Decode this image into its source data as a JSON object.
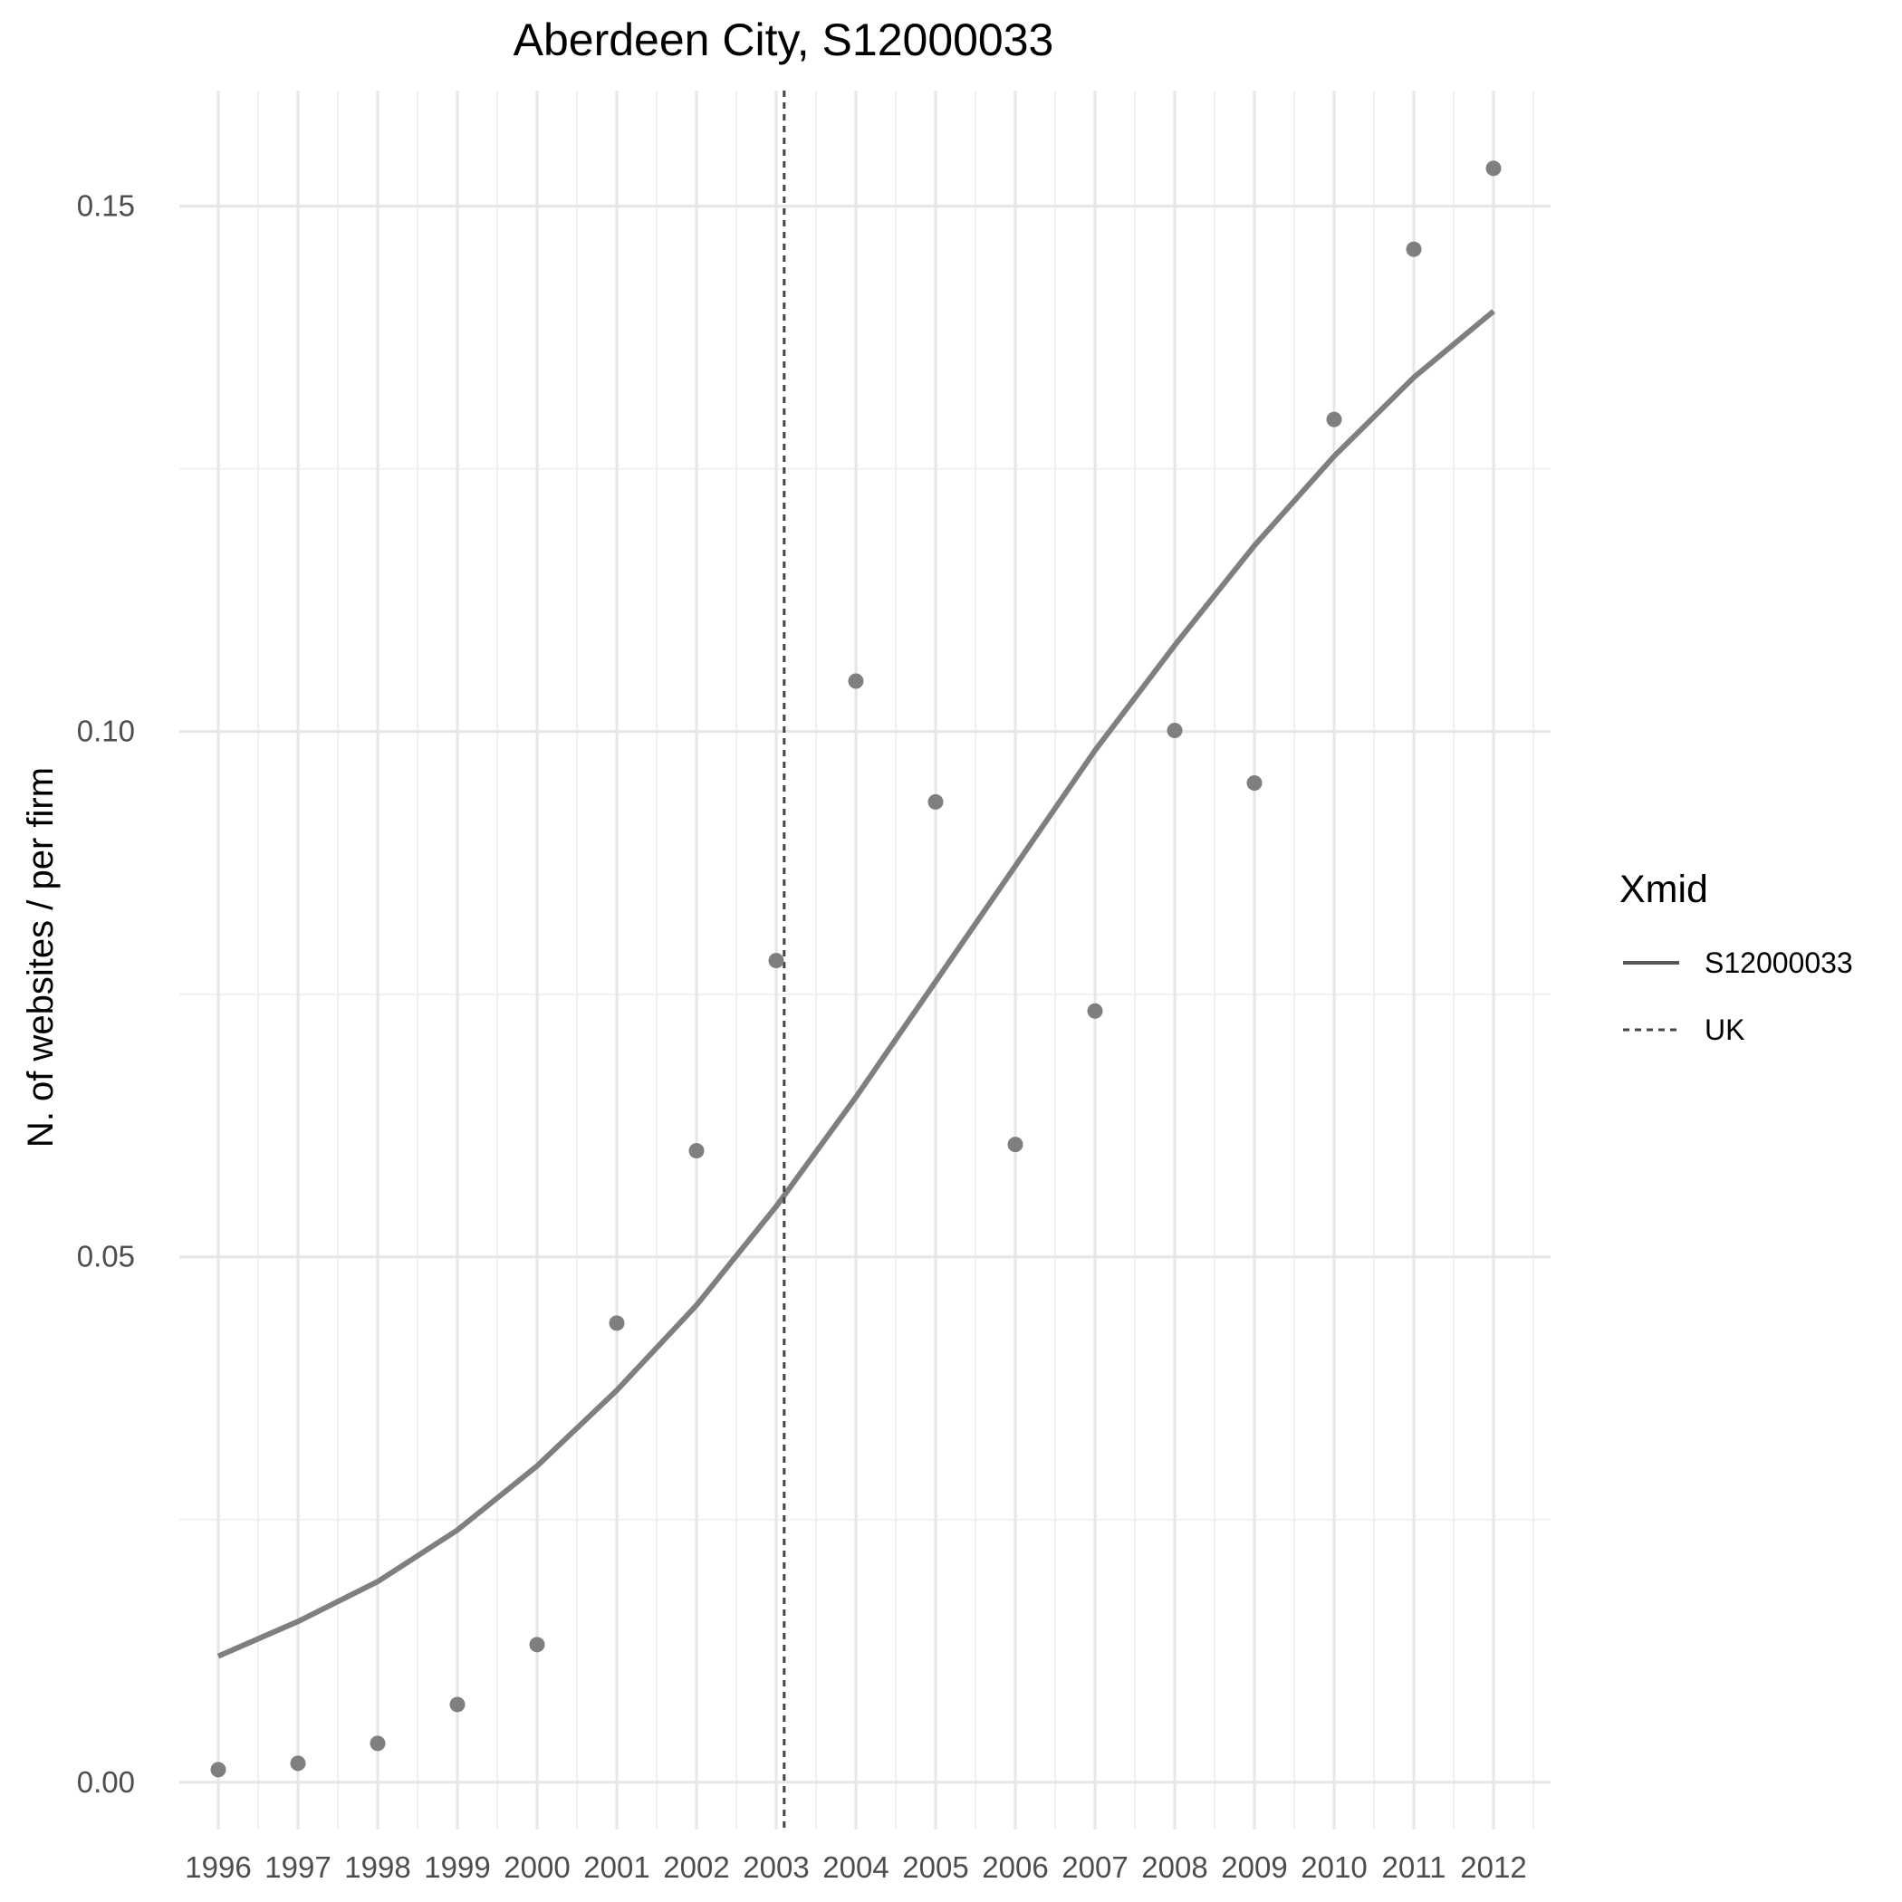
{
  "chart_data": {
    "type": "scatter",
    "title": "Aberdeen City, S12000033",
    "xlabel": "",
    "ylabel": "N. of websites / per firm",
    "categories": [
      "1996",
      "1997",
      "1998",
      "1999",
      "2000",
      "2001",
      "2002",
      "2003",
      "2004",
      "2005",
      "2006",
      "2007",
      "2008",
      "2009",
      "2010",
      "2011",
      "2012"
    ],
    "ylim": [
      -0.0045,
      0.161
    ],
    "yticks": [
      0.0,
      0.05,
      0.1,
      0.15
    ],
    "ytick_labels": [
      "0.00",
      "0.05",
      "0.10",
      "0.15"
    ],
    "grid": true,
    "legend": {
      "title": "Xmid",
      "position": "right",
      "entries": [
        {
          "label": "S12000033",
          "style": "solid"
        },
        {
          "label": "UK",
          "style": "dotted"
        }
      ]
    },
    "series": [
      {
        "kind": "points",
        "color": "#7f7f7f",
        "values": [
          0.0012,
          0.0018,
          0.0037,
          0.0074,
          0.0131,
          0.0437,
          0.0601,
          0.0782,
          0.1048,
          0.0933,
          0.0607,
          0.0734,
          0.1001,
          0.0951,
          0.1297,
          0.1459,
          0.1536
        ]
      },
      {
        "name": "S12000033",
        "kind": "line",
        "color": "#7f7f7f",
        "values": [
          0.012,
          0.0153,
          0.0191,
          0.024,
          0.0301,
          0.0373,
          0.0454,
          0.0548,
          0.0652,
          0.0762,
          0.0872,
          0.0982,
          0.1082,
          0.1177,
          0.1262,
          0.1337,
          0.14
        ]
      }
    ],
    "vlines": [
      {
        "name": "UK",
        "x": 2003.1,
        "style": "dotted",
        "color": "#444444"
      }
    ]
  }
}
